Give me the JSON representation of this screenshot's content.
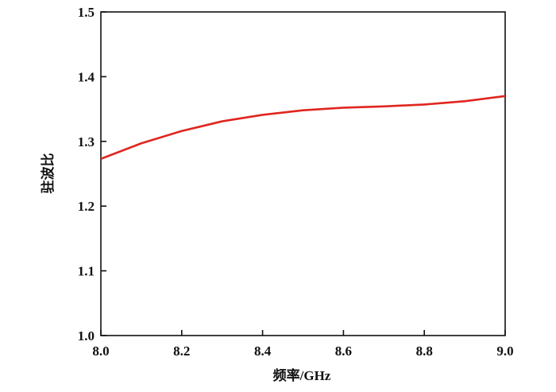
{
  "chart_data": {
    "type": "line",
    "x_label": "频率/GHz",
    "y_label": "驻波比",
    "x": [
      8.0,
      8.1,
      8.2,
      8.3,
      8.4,
      8.5,
      8.6,
      8.7,
      8.8,
      8.9,
      9.0
    ],
    "series": [
      {
        "name": "驻波比",
        "color": "#e0261f",
        "values": [
          1.273,
          1.297,
          1.316,
          1.331,
          1.341,
          1.348,
          1.352,
          1.354,
          1.357,
          1.362,
          1.37
        ]
      }
    ],
    "xlim": [
      8.0,
      9.0
    ],
    "xticks": [
      {
        "value": 8,
        "label": "8.0"
      },
      8.2,
      8.4,
      8.6,
      8.8,
      {
        "value": 9,
        "label": "9.0"
      }
    ],
    "ylim": [
      1.0,
      1.5
    ],
    "yticks": [
      {
        "value": 1,
        "label": "1.0"
      },
      1.1,
      1.2,
      1.3,
      1.4,
      1.5
    ]
  }
}
